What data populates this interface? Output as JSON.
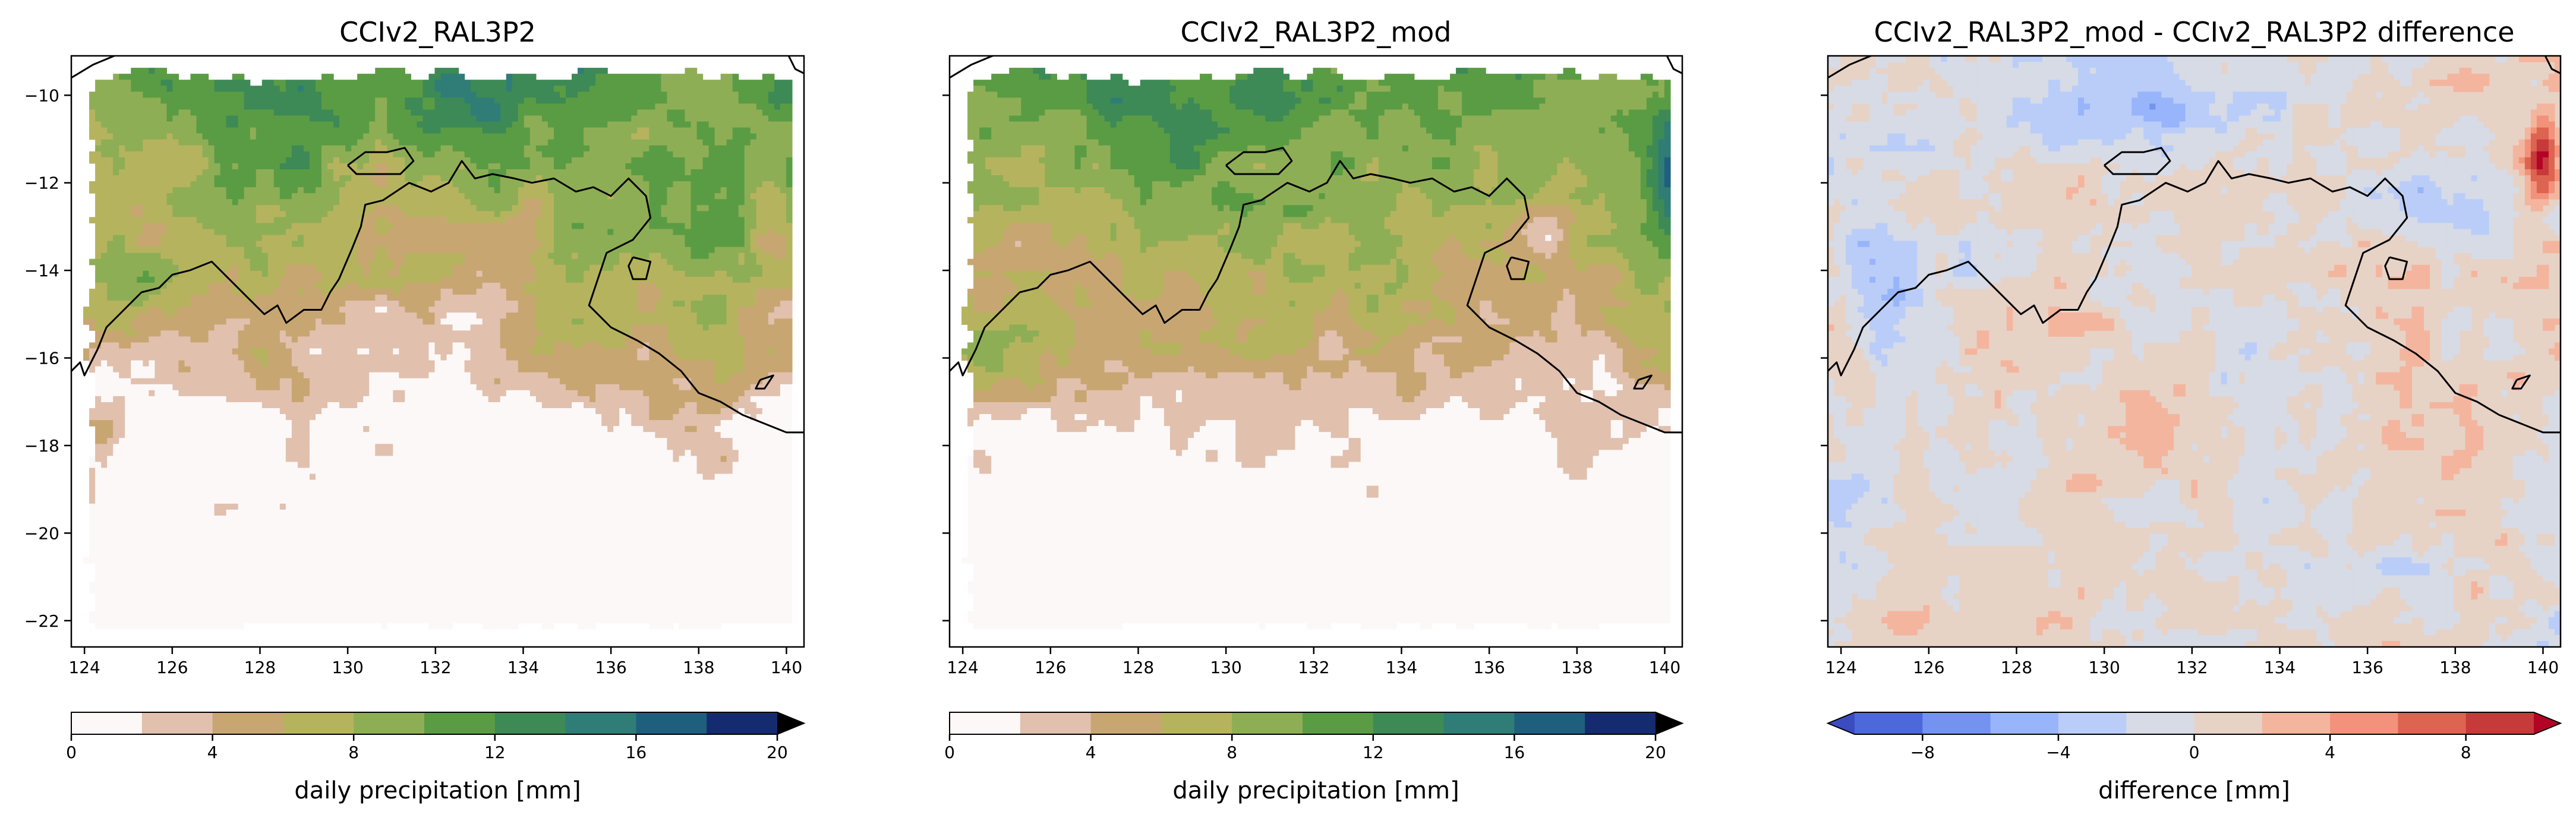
{
  "panels": [
    {
      "title": "CCIv2_RAL3P2",
      "colormap": "precip",
      "variant": 0,
      "show_y_labels": true,
      "x_ticks": [
        124,
        126,
        128,
        130,
        132,
        134,
        136,
        138,
        140
      ],
      "y_ticks": [
        -10,
        -12,
        -14,
        -16,
        -18,
        -20,
        -22
      ],
      "x_tick_labels": [
        "124",
        "126",
        "128",
        "130",
        "132",
        "134",
        "136",
        "138",
        "140"
      ],
      "y_tick_labels": [
        "−10",
        "−12",
        "−14",
        "−16",
        "−18",
        "−20",
        "−22"
      ],
      "colorbar": {
        "label": "daily precipitation [mm]",
        "ticks": [
          0,
          4,
          8,
          12,
          16,
          20
        ],
        "tick_labels": [
          "0",
          "4",
          "8",
          "12",
          "16",
          "20"
        ],
        "boundaries": [
          0,
          2,
          4,
          6,
          8,
          10,
          12,
          14,
          16,
          18,
          20
        ],
        "extend": "max"
      }
    },
    {
      "title": "CCIv2_RAL3P2_mod",
      "colormap": "precip",
      "variant": 1,
      "show_y_labels": false,
      "x_ticks": [
        124,
        126,
        128,
        130,
        132,
        134,
        136,
        138,
        140
      ],
      "y_ticks": [
        -10,
        -12,
        -14,
        -16,
        -18,
        -20,
        -22
      ],
      "x_tick_labels": [
        "124",
        "126",
        "128",
        "130",
        "132",
        "134",
        "136",
        "138",
        "140"
      ],
      "y_tick_labels": [],
      "colorbar": {
        "label": "daily precipitation [mm]",
        "ticks": [
          0,
          4,
          8,
          12,
          16,
          20
        ],
        "tick_labels": [
          "0",
          "4",
          "8",
          "12",
          "16",
          "20"
        ],
        "boundaries": [
          0,
          2,
          4,
          6,
          8,
          10,
          12,
          14,
          16,
          18,
          20
        ],
        "extend": "max"
      }
    },
    {
      "title": "CCIv2_RAL3P2_mod - CCIv2_RAL3P2 difference",
      "colormap": "diff",
      "variant": 2,
      "show_y_labels": false,
      "x_ticks": [
        124,
        126,
        128,
        130,
        132,
        134,
        136,
        138,
        140
      ],
      "y_ticks": [
        -10,
        -12,
        -14,
        -16,
        -18,
        -20,
        -22
      ],
      "x_tick_labels": [
        "124",
        "126",
        "128",
        "130",
        "132",
        "134",
        "136",
        "138",
        "140"
      ],
      "y_tick_labels": [],
      "colorbar": {
        "label": "difference [mm]",
        "ticks": [
          -8,
          -4,
          0,
          4,
          8
        ],
        "tick_labels": [
          "−8",
          "−4",
          "0",
          "4",
          "8"
        ],
        "boundaries": [
          -10,
          -8,
          -6,
          -4,
          -2,
          0,
          2,
          4,
          6,
          8,
          10
        ],
        "extend": "both"
      }
    }
  ],
  "colors": {
    "precip": [
      "#fbf8f7",
      "#e1c0ae",
      "#c8a672",
      "#b6b35f",
      "#8eae55",
      "#5a9c44",
      "#3d8a56",
      "#2f7d76",
      "#1f5f7e",
      "#142b6f"
    ],
    "precip_over": "#000000",
    "diff": [
      "#4d68d8",
      "#7393ee",
      "#98b4fb",
      "#bacdf8",
      "#d6dbe6",
      "#e7d2c6",
      "#f4b59e",
      "#f2927a",
      "#dd6450",
      "#c73a3a"
    ],
    "diff_under": "#3b4cc0",
    "diff_over": "#b40426",
    "coastline": "#000000"
  },
  "chart_data": [
    {
      "type": "heatmap",
      "title": "CCIv2_RAL3P2",
      "x_range": [
        123.7,
        140.4
      ],
      "y_range": [
        -22.6,
        -9.1
      ],
      "x_ticks": [
        124,
        126,
        128,
        130,
        132,
        134,
        136,
        138,
        140
      ],
      "y_ticks": [
        -10,
        -12,
        -14,
        -16,
        -18,
        -20,
        -22
      ],
      "colorbar_label": "daily precipitation [mm]",
      "colorbar_range": [
        0,
        20
      ]
    },
    {
      "type": "heatmap",
      "title": "CCIv2_RAL3P2_mod",
      "x_range": [
        123.7,
        140.4
      ],
      "y_range": [
        -22.6,
        -9.1
      ],
      "x_ticks": [
        124,
        126,
        128,
        130,
        132,
        134,
        136,
        138,
        140
      ],
      "y_ticks": [
        -10,
        -12,
        -14,
        -16,
        -18,
        -20,
        -22
      ],
      "colorbar_label": "daily precipitation [mm]",
      "colorbar_range": [
        0,
        20
      ]
    },
    {
      "type": "heatmap",
      "title": "CCIv2_RAL3P2_mod - CCIv2_RAL3P2 difference",
      "x_range": [
        123.7,
        140.4
      ],
      "y_range": [
        -22.6,
        -9.1
      ],
      "x_ticks": [
        124,
        126,
        128,
        130,
        132,
        134,
        136,
        138,
        140
      ],
      "y_ticks": [
        -10,
        -12,
        -14,
        -16,
        -18,
        -20,
        -22
      ],
      "colorbar_label": "difference [mm]",
      "colorbar_range": [
        -10,
        10
      ]
    }
  ]
}
